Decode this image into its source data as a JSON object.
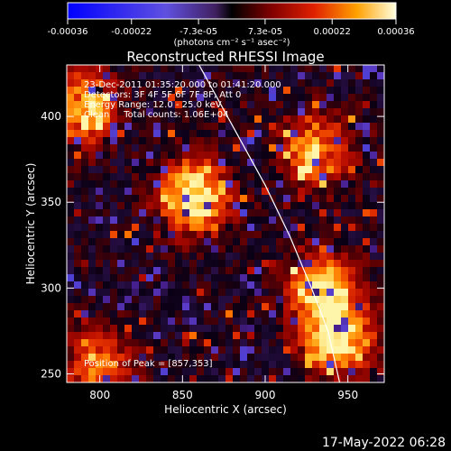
{
  "colorbar": {
    "ticks": [
      {
        "value": -0.00036,
        "label": "-0.00036"
      },
      {
        "value": -0.00022,
        "label": "-0.00022"
      },
      {
        "value": -7.3e-05,
        "label": "-7.3e-05"
      },
      {
        "value": 7.3e-05,
        "label": "7.3e-05"
      },
      {
        "value": 0.00022,
        "label": "0.00022"
      },
      {
        "value": 0.00036,
        "label": "0.00036"
      }
    ],
    "range": [
      -0.00036,
      0.00036
    ],
    "unit_label": "(photons cm⁻² s⁻¹ asec⁻²)"
  },
  "chart_data": {
    "type": "heatmap",
    "title": "Reconstructed RHESSI Image",
    "xlabel": "Heliocentric X (arcsec)",
    "ylabel": "Heliocentric Y (arcsec)",
    "xlim": [
      780,
      972
    ],
    "ylim": [
      245,
      430
    ],
    "xticks": [
      800,
      850,
      900,
      950
    ],
    "yticks": [
      250,
      300,
      350,
      400
    ],
    "annotations": [
      "23-Dec-2011 01:35:20.000 to 01:41:20.000",
      "Detectors: 3F 4F 5F 6F 7F 8F, Att 0",
      "Energy Range: 12.0 - 25.0 keV",
      "Clean     Total counts: 1.06E+04"
    ],
    "peak_label": "Position of Peak = [857,353]",
    "peak": [
      857,
      353
    ],
    "bright_sources": [
      {
        "x": 857,
        "y": 353,
        "level": 1.0
      },
      {
        "x": 945,
        "y": 270,
        "level": 0.9
      },
      {
        "x": 935,
        "y": 300,
        "level": 0.8
      },
      {
        "x": 930,
        "y": 380,
        "level": 0.7
      },
      {
        "x": 790,
        "y": 405,
        "level": 0.7
      },
      {
        "x": 800,
        "y": 255,
        "level": 0.6
      }
    ],
    "limb_curve": [
      [
        860,
        430
      ],
      [
        880,
        395
      ],
      [
        900,
        360
      ],
      [
        915,
        330
      ],
      [
        928,
        300
      ],
      [
        938,
        275
      ],
      [
        945,
        245
      ]
    ]
  },
  "footer": {
    "timestamp": "17-May-2022 06:28"
  }
}
